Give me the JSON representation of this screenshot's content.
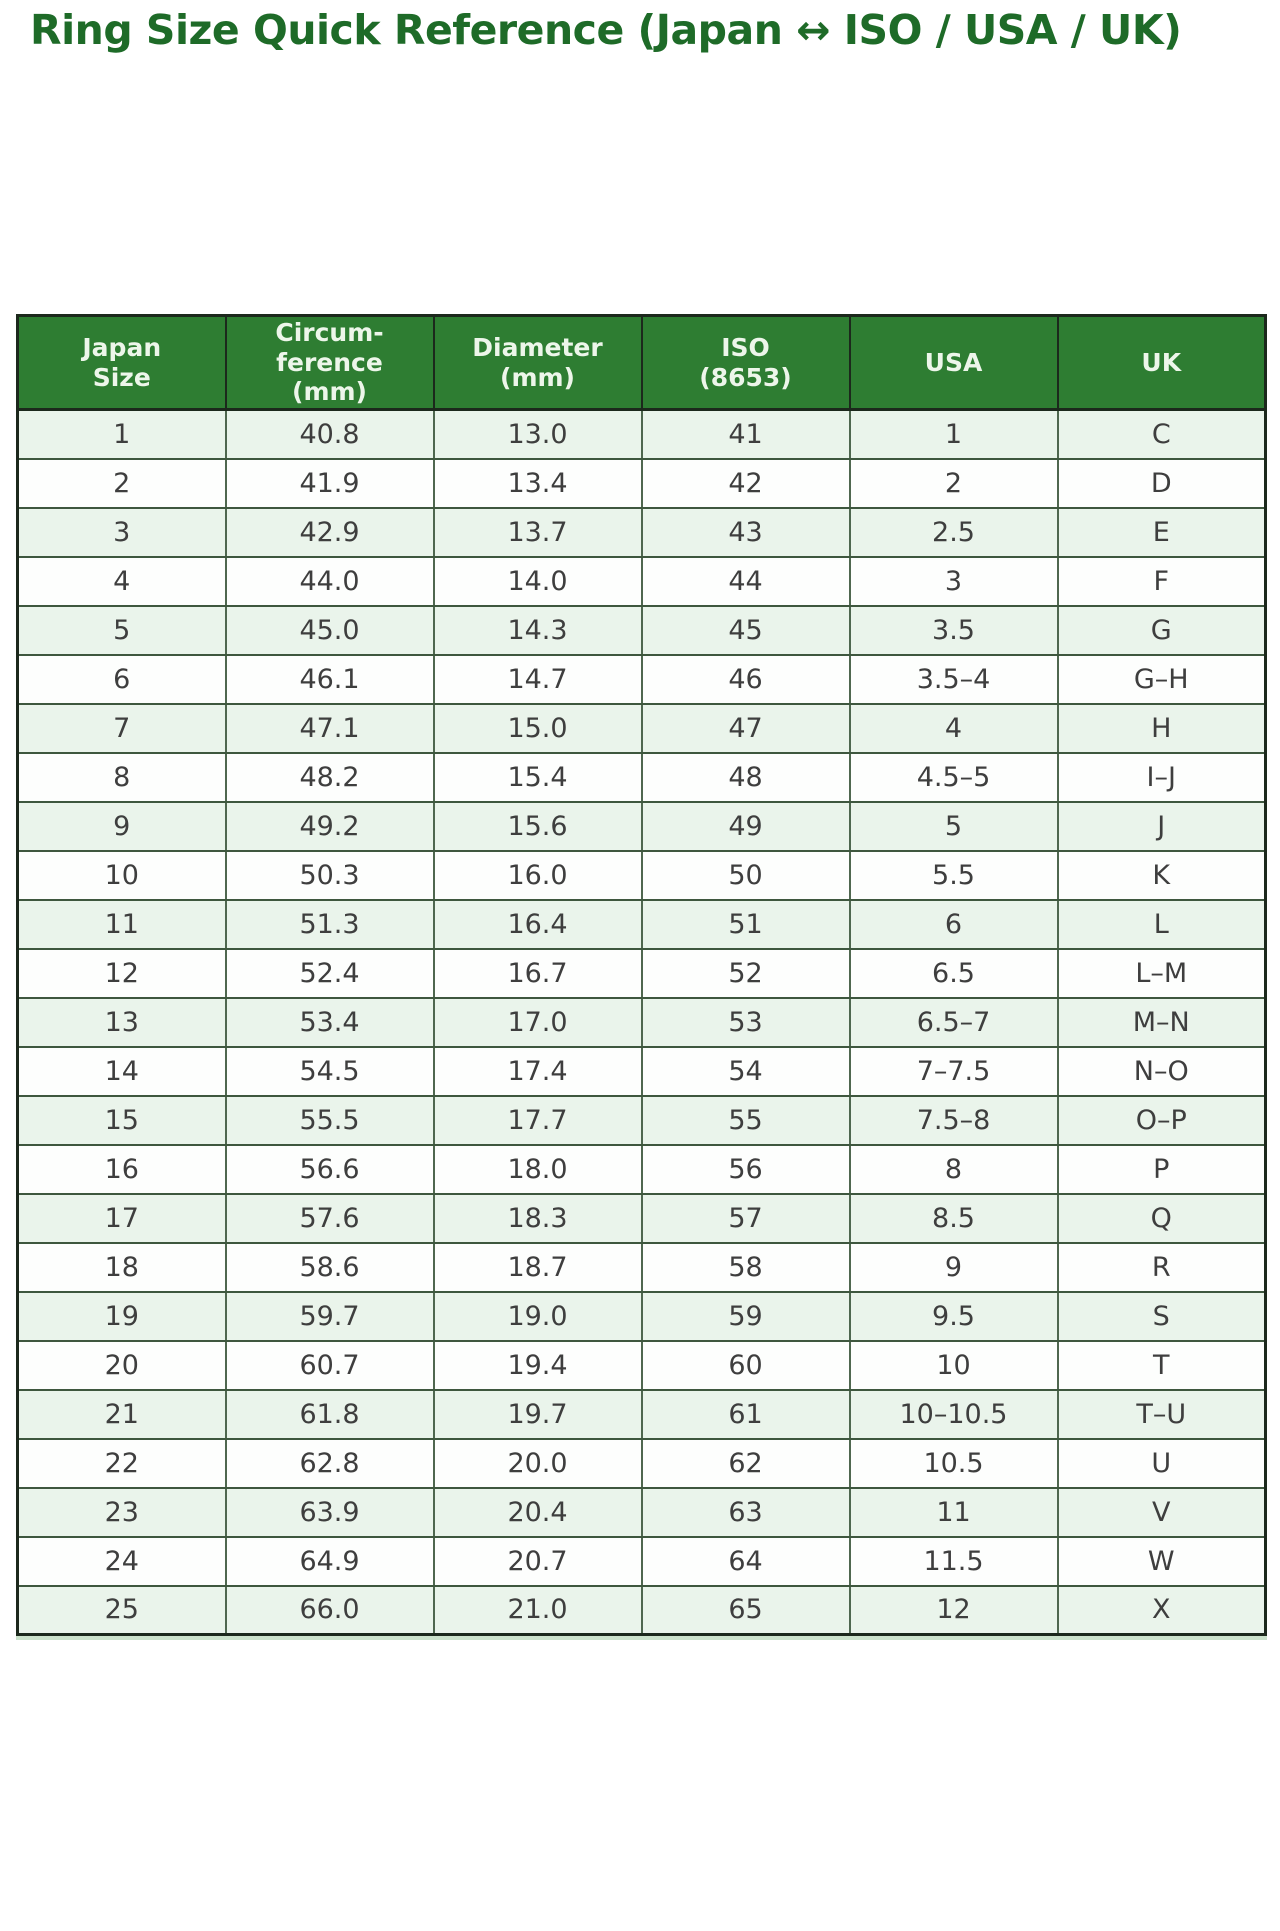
{
  "title": "Ring Size Quick Reference (Japan ↔ ISO / USA / UK)",
  "chart_data": {
    "type": "table",
    "title": "Ring Size Quick Reference (Japan ↔ ISO / USA / UK)",
    "columns": [
      "Japan\nSize",
      "Circum-\nference\n(mm)",
      "Diameter\n(mm)",
      "ISO\n(8653)",
      "USA",
      "UK"
    ],
    "column_ids": [
      "japan-size",
      "circumference-mm",
      "diameter-mm",
      "iso-8653",
      "usa",
      "uk"
    ],
    "rows": [
      [
        "1",
        "40.8",
        "13.0",
        "41",
        "1",
        "C"
      ],
      [
        "2",
        "41.9",
        "13.4",
        "42",
        "2",
        "D"
      ],
      [
        "3",
        "42.9",
        "13.7",
        "43",
        "2.5",
        "E"
      ],
      [
        "4",
        "44.0",
        "14.0",
        "44",
        "3",
        "F"
      ],
      [
        "5",
        "45.0",
        "14.3",
        "45",
        "3.5",
        "G"
      ],
      [
        "6",
        "46.1",
        "14.7",
        "46",
        "3.5–4",
        "G–H"
      ],
      [
        "7",
        "47.1",
        "15.0",
        "47",
        "4",
        "H"
      ],
      [
        "8",
        "48.2",
        "15.4",
        "48",
        "4.5–5",
        "I–J"
      ],
      [
        "9",
        "49.2",
        "15.6",
        "49",
        "5",
        "J"
      ],
      [
        "10",
        "50.3",
        "16.0",
        "50",
        "5.5",
        "K"
      ],
      [
        "11",
        "51.3",
        "16.4",
        "51",
        "6",
        "L"
      ],
      [
        "12",
        "52.4",
        "16.7",
        "52",
        "6.5",
        "L–M"
      ],
      [
        "13",
        "53.4",
        "17.0",
        "53",
        "6.5–7",
        "M–N"
      ],
      [
        "14",
        "54.5",
        "17.4",
        "54",
        "7–7.5",
        "N–O"
      ],
      [
        "15",
        "55.5",
        "17.7",
        "55",
        "7.5–8",
        "O–P"
      ],
      [
        "16",
        "56.6",
        "18.0",
        "56",
        "8",
        "P"
      ],
      [
        "17",
        "57.6",
        "18.3",
        "57",
        "8.5",
        "Q"
      ],
      [
        "18",
        "58.6",
        "18.7",
        "58",
        "9",
        "R"
      ],
      [
        "19",
        "59.7",
        "19.0",
        "59",
        "9.5",
        "S"
      ],
      [
        "20",
        "60.7",
        "19.4",
        "60",
        "10",
        "T"
      ],
      [
        "21",
        "61.8",
        "19.7",
        "61",
        "10–10.5",
        "T–U"
      ],
      [
        "22",
        "62.8",
        "20.0",
        "62",
        "10.5",
        "U"
      ],
      [
        "23",
        "63.9",
        "20.4",
        "63",
        "11",
        "V"
      ],
      [
        "24",
        "64.9",
        "20.7",
        "64",
        "11.5",
        "W"
      ],
      [
        "25",
        "66.0",
        "21.0",
        "65",
        "12",
        "X"
      ]
    ],
    "layout": {
      "legend": "none",
      "grid": "full-borders",
      "striped_rows": true
    }
  },
  "colors": {
    "title_color": "#1e6b28",
    "header_bg": "#2e7d32",
    "header_text": "#edf6ea",
    "row_alt_bg": "#eaf4eb",
    "row_bg": "#fdfefd",
    "cell_text": "#3e3e3e",
    "border_outer": "#1c281c",
    "border_inner_v": "#4f674f",
    "border_inner_h": "#3e573e"
  }
}
